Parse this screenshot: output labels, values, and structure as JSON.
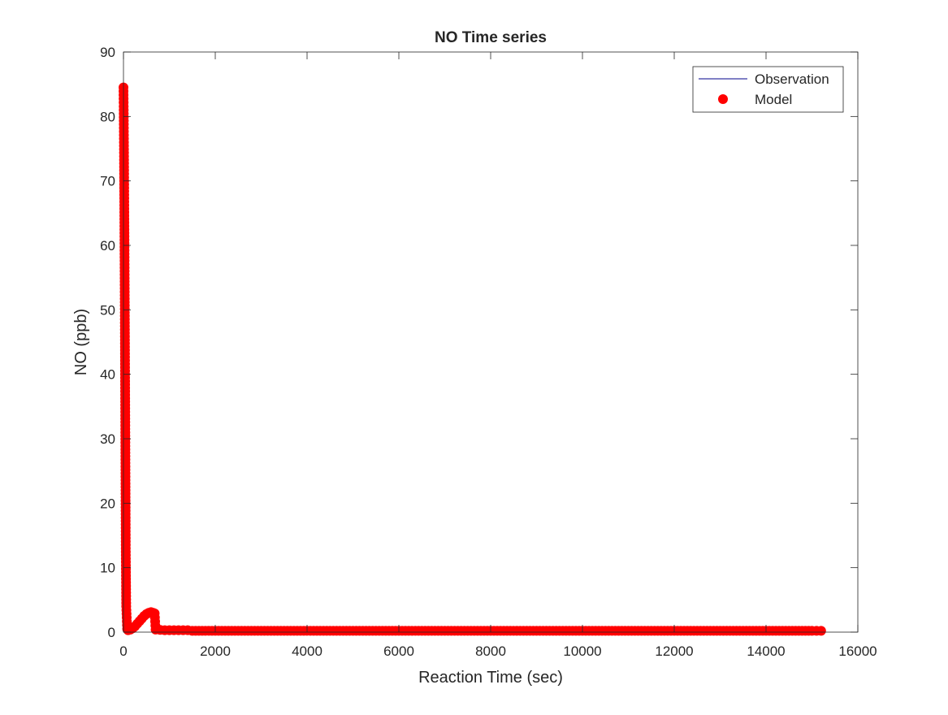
{
  "chart_data": {
    "type": "scatter",
    "title": "NO Time series",
    "xlabel": "Reaction Time (sec)",
    "ylabel": "NO (ppb)",
    "xlim": [
      0,
      16000
    ],
    "ylim": [
      0,
      90
    ],
    "xticks": [
      0,
      2000,
      4000,
      6000,
      8000,
      10000,
      12000,
      14000,
      16000
    ],
    "yticks": [
      0,
      10,
      20,
      30,
      40,
      50,
      60,
      70,
      80,
      90
    ],
    "grid": false,
    "legend_position": "top-right",
    "series": [
      {
        "name": "Observation",
        "kind": "line",
        "color": "#00008b",
        "x": [],
        "y": []
      },
      {
        "name": "Model",
        "kind": "marker",
        "color": "#ff0000",
        "x": [
          0,
          5,
          10,
          15,
          20,
          25,
          30,
          35,
          40,
          45,
          50,
          60,
          80,
          100,
          150,
          200,
          250,
          300,
          350,
          400,
          450,
          500,
          550,
          600,
          650,
          680,
          700,
          800,
          900,
          1000,
          1200,
          1400,
          1500,
          2000,
          2500,
          3000,
          3500,
          4000,
          4500,
          5000,
          5500,
          6000,
          6500,
          7000,
          7500,
          8000,
          8500,
          9000,
          9500,
          10000,
          10500,
          11000,
          11500,
          12000,
          12500,
          13000,
          13500,
          14000,
          14500,
          15000,
          15200
        ],
        "y": [
          84.5,
          81,
          76,
          70,
          63,
          56,
          48,
          40,
          31,
          22,
          13,
          4,
          0.5,
          0.3,
          0.4,
          0.6,
          0.9,
          1.3,
          1.7,
          2.1,
          2.5,
          2.8,
          3.0,
          3.1,
          3.0,
          2.9,
          0.4,
          0.35,
          0.3,
          0.3,
          0.3,
          0.3,
          0.2,
          0.2,
          0.2,
          0.2,
          0.2,
          0.2,
          0.2,
          0.2,
          0.2,
          0.2,
          0.2,
          0.2,
          0.2,
          0.2,
          0.2,
          0.2,
          0.2,
          0.2,
          0.2,
          0.2,
          0.2,
          0.2,
          0.2,
          0.2,
          0.2,
          0.2,
          0.2,
          0.2,
          0.2
        ]
      }
    ]
  }
}
